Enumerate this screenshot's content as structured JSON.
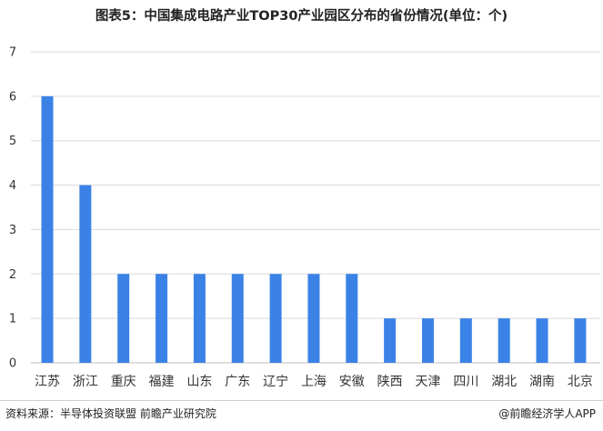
{
  "title": "图表5：中国集成电路产业TOP30产业园区分布的省份情况(单位：个)",
  "source": "资料来源：半导体投资联盟 前瞻产业研究院",
  "brand": "@前瞻经济学人APP",
  "colors": {
    "bar": "#3b82e6",
    "grid": "#d9d9d9"
  },
  "chart_data": {
    "type": "bar",
    "title": "图表5：中国集成电路产业TOP30产业园区分布的省份情况(单位：个)",
    "categories": [
      "江苏",
      "浙江",
      "重庆",
      "福建",
      "山东",
      "广东",
      "辽宁",
      "上海",
      "安徽",
      "陕西",
      "天津",
      "四川",
      "湖北",
      "湖南",
      "北京"
    ],
    "values": [
      6,
      4,
      2,
      2,
      2,
      2,
      2,
      2,
      2,
      1,
      1,
      1,
      1,
      1,
      1
    ],
    "yticks": [
      0,
      1,
      2,
      3,
      4,
      5,
      6,
      7
    ],
    "ylim": [
      0,
      7
    ],
    "xlabel": "",
    "ylabel": "",
    "grid": true,
    "legend": "none"
  }
}
